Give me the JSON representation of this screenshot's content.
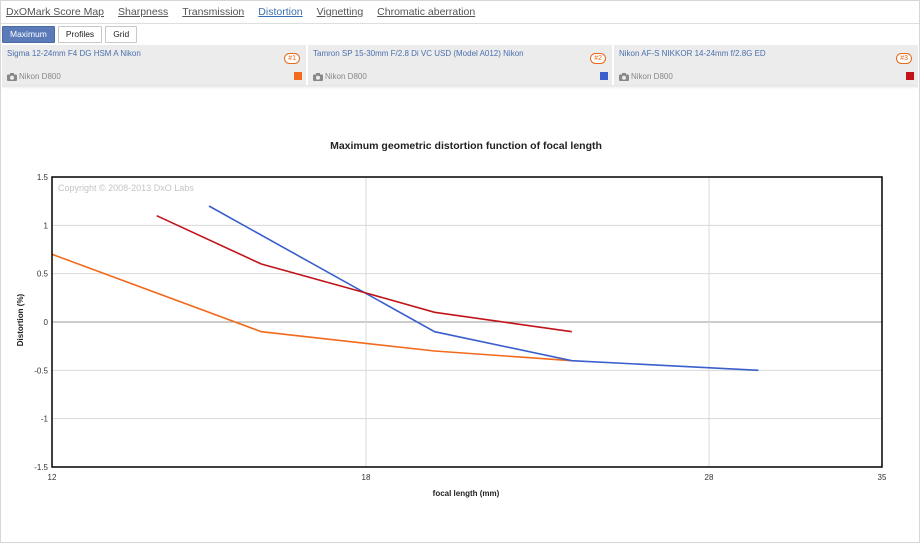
{
  "nav": {
    "items": [
      {
        "label": "DxOMark Score Map",
        "active": false
      },
      {
        "label": "Sharpness",
        "active": false
      },
      {
        "label": "Transmission",
        "active": false
      },
      {
        "label": "Distortion",
        "active": true
      },
      {
        "label": "Vignetting",
        "active": false
      },
      {
        "label": "Chromatic aberration",
        "active": false
      }
    ]
  },
  "tabs": [
    {
      "label": "Maximum",
      "active": true
    },
    {
      "label": "Profiles",
      "active": false
    },
    {
      "label": "Grid",
      "active": false
    }
  ],
  "lenses": [
    {
      "name": "Sigma 12-24mm F4 DG HSM A Nikon",
      "badge": "#1",
      "camera": "Nikon D800",
      "color": "#f26a1b"
    },
    {
      "name": "Tamron SP 15-30mm F/2.8 Di VC USD (Model A012) Nikon",
      "badge": "#2",
      "camera": "Nikon D800",
      "color": "#3a5fcd"
    },
    {
      "name": "Nikon AF-S NIKKOR 14-24mm f/2.8G ED",
      "badge": "#3",
      "camera": "Nikon D800",
      "color": "#c0141b"
    }
  ],
  "chart_data": {
    "type": "line",
    "title": "Maximum geometric distortion function of focal length",
    "xlabel": "focal length (mm)",
    "ylabel": "Distortion (%)",
    "watermark": "Copyright © 2008-2013 DxO Labs",
    "xlim": [
      12,
      35
    ],
    "ylim": [
      -1.5,
      1.5
    ],
    "xticks": [
      12,
      18,
      28,
      35
    ],
    "yticks": [
      1.5,
      1,
      0.5,
      0,
      -0.5,
      -1,
      -1.5
    ],
    "grid": true,
    "series": [
      {
        "name": "Sigma 12-24mm F4 DG HSM A Nikon",
        "color": "#f26a1b",
        "x": [
          12,
          16,
          20,
          24
        ],
        "y": [
          0.7,
          -0.1,
          -0.3,
          -0.4
        ]
      },
      {
        "name": "Tamron SP 15-30mm F/2.8 Di VC USD (Model A012) Nikon",
        "color": "#3a5fcd",
        "x": [
          15,
          20,
          24,
          30
        ],
        "y": [
          1.2,
          -0.1,
          -0.4,
          -0.5
        ]
      },
      {
        "name": "Nikon AF-S NIKKOR 14-24mm f/2.8G ED",
        "color": "#c0141b",
        "x": [
          14,
          16,
          18,
          20,
          24
        ],
        "y": [
          1.1,
          0.6,
          0.3,
          0.1,
          -0.1
        ]
      }
    ]
  }
}
